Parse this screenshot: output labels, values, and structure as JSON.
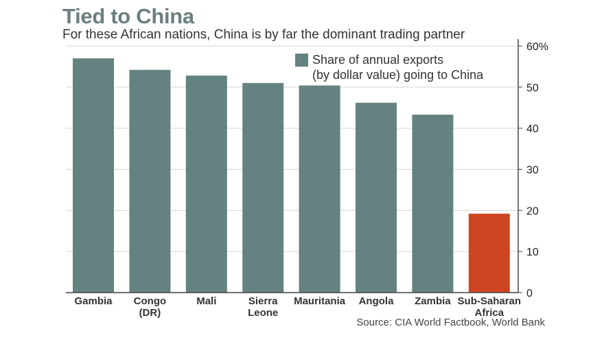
{
  "chart_data": {
    "type": "bar",
    "title": "Tied to China",
    "subtitle": "For these African nations, China is by far the dominant trading partner",
    "source": "Source: CIA World Factbook, World Bank",
    "categories": [
      [
        "Gambia"
      ],
      [
        "Congo",
        "(DR)"
      ],
      [
        "Mali"
      ],
      [
        "Sierra",
        "Leone"
      ],
      [
        "Mauritania"
      ],
      [
        "Angola"
      ],
      [
        "Zambia"
      ],
      [
        "Sub-Saharan",
        "Africa"
      ]
    ],
    "series": [
      {
        "name": "Share of annual exports (by dollar value) going to China",
        "legend_lines": [
          "Share of annual exports",
          "(by dollar value) going to China"
        ],
        "values": [
          57,
          54.2,
          52.8,
          51,
          50.4,
          46.2,
          43.3,
          19.2
        ]
      }
    ],
    "bar_colors": [
      "#648280",
      "#648280",
      "#648280",
      "#648280",
      "#648280",
      "#648280",
      "#648280",
      "#cf4522"
    ],
    "ylim": [
      0,
      60
    ],
    "yticks": [
      {
        "value": 0,
        "label": "0"
      },
      {
        "value": 10,
        "label": "10"
      },
      {
        "value": 20,
        "label": "20"
      },
      {
        "value": 30,
        "label": "30"
      },
      {
        "value": 40,
        "label": "40"
      },
      {
        "value": 50,
        "label": "50"
      },
      {
        "value": 60,
        "label": "60%"
      }
    ],
    "y_axis_position": "right",
    "grid": true,
    "legend_position": "top-right"
  }
}
